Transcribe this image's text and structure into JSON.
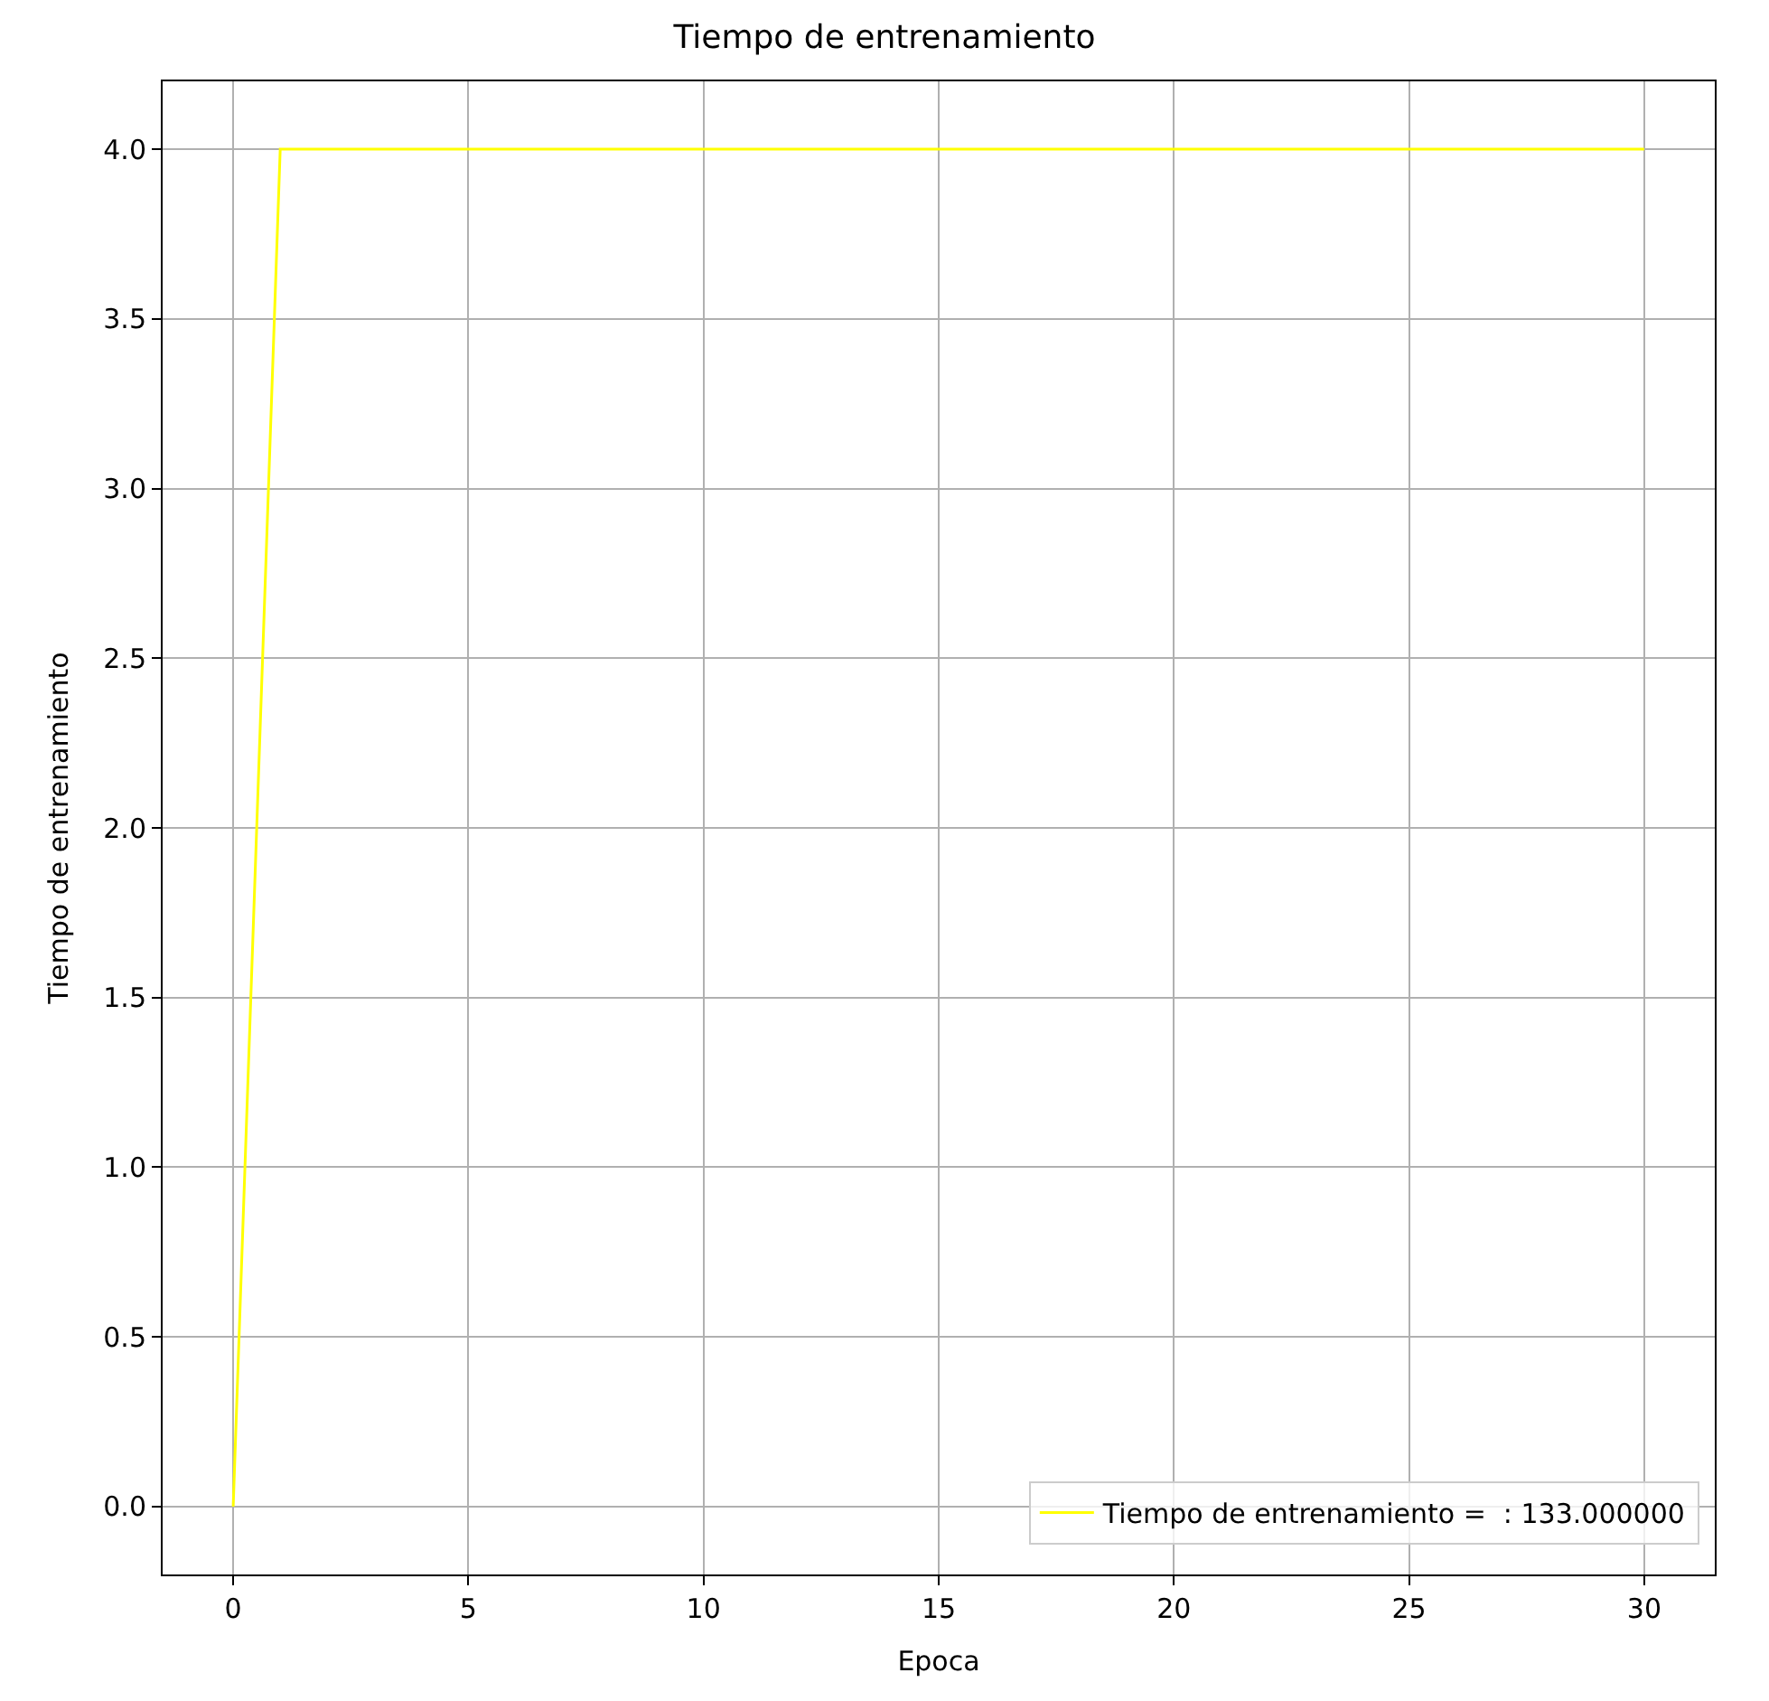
{
  "chart_data": {
    "type": "line",
    "title": "Tiempo de entrenamiento",
    "xlabel": "Epoca",
    "ylabel": "Tiempo de entrenamiento",
    "x": [
      0,
      1,
      30
    ],
    "series": [
      {
        "name": "Tiempo de entrenamiento =  : 133.000000",
        "color": "#ffff00",
        "values": [
          0,
          4,
          4
        ]
      }
    ],
    "xlim": [
      -1.5,
      31.5
    ],
    "xticks": [
      0,
      5,
      10,
      15,
      20,
      25,
      30
    ],
    "ylim": [
      -0.2,
      4.2
    ],
    "yticks": [
      {
        "value": 0,
        "label": "0.0"
      },
      {
        "value": 0.5,
        "label": "0.5"
      },
      {
        "value": 1,
        "label": "1.0"
      },
      {
        "value": 1.5,
        "label": "1.5"
      },
      {
        "value": 2,
        "label": "2.0"
      },
      {
        "value": 2.5,
        "label": "2.5"
      },
      {
        "value": 3,
        "label": "3.0"
      },
      {
        "value": 3.5,
        "label": "3.5"
      },
      {
        "value": 4,
        "label": "4.0"
      }
    ],
    "grid": true,
    "legend": "bottom right",
    "marker": "none",
    "line_style": "solid"
  }
}
